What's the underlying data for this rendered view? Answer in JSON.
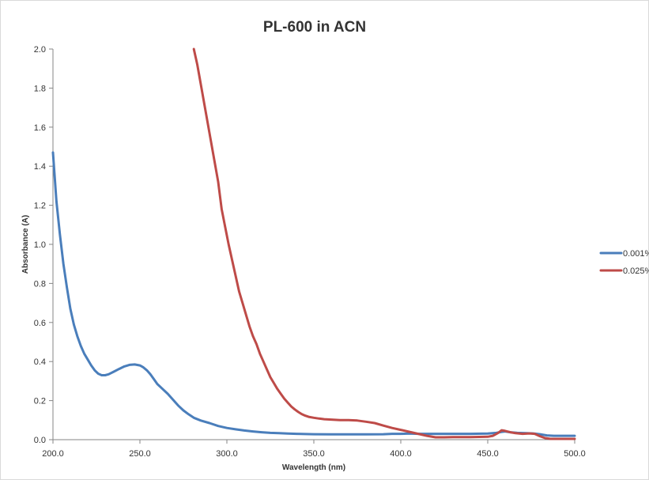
{
  "chart_data": {
    "type": "line",
    "title": "PL-600 in ACN",
    "xlabel": "Wavelength (nm)",
    "ylabel": "Absorbance (A)",
    "xlim": [
      200,
      500
    ],
    "ylim": [
      0,
      2
    ],
    "x_ticks": [
      "200.0",
      "250.0",
      "300.0",
      "350.0",
      "400.0",
      "450.0",
      "500.0"
    ],
    "y_ticks": [
      "0.0",
      "0.2",
      "0.4",
      "0.6",
      "0.8",
      "1.0",
      "1.2",
      "1.4",
      "1.6",
      "1.8",
      "2.0"
    ],
    "grid": false,
    "legend_position": "right",
    "series": [
      {
        "name": "0.001%",
        "color": "#4a7ebb",
        "points": [
          [
            200,
            1.47
          ],
          [
            202,
            1.22
          ],
          [
            204,
            1.05
          ],
          [
            206,
            0.9
          ],
          [
            208,
            0.78
          ],
          [
            210,
            0.67
          ],
          [
            212,
            0.59
          ],
          [
            214,
            0.53
          ],
          [
            216,
            0.48
          ],
          [
            218,
            0.44
          ],
          [
            220,
            0.41
          ],
          [
            222,
            0.38
          ],
          [
            224,
            0.355
          ],
          [
            226,
            0.338
          ],
          [
            228,
            0.33
          ],
          [
            230,
            0.33
          ],
          [
            232,
            0.335
          ],
          [
            235,
            0.348
          ],
          [
            238,
            0.362
          ],
          [
            241,
            0.375
          ],
          [
            244,
            0.383
          ],
          [
            247,
            0.385
          ],
          [
            250,
            0.38
          ],
          [
            252,
            0.37
          ],
          [
            254,
            0.355
          ],
          [
            256,
            0.335
          ],
          [
            258,
            0.31
          ],
          [
            260,
            0.285
          ],
          [
            263,
            0.26
          ],
          [
            266,
            0.235
          ],
          [
            269,
            0.205
          ],
          [
            272,
            0.175
          ],
          [
            275,
            0.15
          ],
          [
            278,
            0.13
          ],
          [
            281,
            0.112
          ],
          [
            285,
            0.098
          ],
          [
            290,
            0.085
          ],
          [
            295,
            0.07
          ],
          [
            300,
            0.06
          ],
          [
            305,
            0.053
          ],
          [
            310,
            0.047
          ],
          [
            315,
            0.042
          ],
          [
            320,
            0.038
          ],
          [
            325,
            0.035
          ],
          [
            330,
            0.033
          ],
          [
            335,
            0.031
          ],
          [
            340,
            0.03
          ],
          [
            350,
            0.028
          ],
          [
            360,
            0.027
          ],
          [
            370,
            0.027
          ],
          [
            380,
            0.027
          ],
          [
            390,
            0.028
          ],
          [
            395,
            0.03
          ],
          [
            400,
            0.03
          ],
          [
            405,
            0.031
          ],
          [
            410,
            0.03
          ],
          [
            420,
            0.03
          ],
          [
            430,
            0.03
          ],
          [
            440,
            0.03
          ],
          [
            450,
            0.031
          ],
          [
            455,
            0.035
          ],
          [
            458,
            0.04
          ],
          [
            460,
            0.042
          ],
          [
            463,
            0.038
          ],
          [
            467,
            0.035
          ],
          [
            472,
            0.033
          ],
          [
            476,
            0.032
          ],
          [
            480,
            0.028
          ],
          [
            484,
            0.022
          ],
          [
            488,
            0.02
          ],
          [
            495,
            0.02
          ],
          [
            500,
            0.02
          ]
        ]
      },
      {
        "name": "0.025%",
        "color": "#be4b48",
        "points": [
          [
            281,
            2.0
          ],
          [
            283,
            1.92
          ],
          [
            285,
            1.82
          ],
          [
            287,
            1.72
          ],
          [
            289,
            1.62
          ],
          [
            291,
            1.52
          ],
          [
            293,
            1.42
          ],
          [
            295,
            1.32
          ],
          [
            296,
            1.25
          ],
          [
            297,
            1.18
          ],
          [
            299,
            1.09
          ],
          [
            301,
            1.0
          ],
          [
            303,
            0.92
          ],
          [
            305,
            0.84
          ],
          [
            307,
            0.76
          ],
          [
            309,
            0.7
          ],
          [
            311,
            0.64
          ],
          [
            313,
            0.58
          ],
          [
            315,
            0.53
          ],
          [
            317,
            0.49
          ],
          [
            319,
            0.44
          ],
          [
            321,
            0.4
          ],
          [
            323,
            0.36
          ],
          [
            325,
            0.32
          ],
          [
            327,
            0.29
          ],
          [
            329,
            0.26
          ],
          [
            331,
            0.235
          ],
          [
            333,
            0.21
          ],
          [
            335,
            0.19
          ],
          [
            337,
            0.17
          ],
          [
            339,
            0.155
          ],
          [
            341,
            0.142
          ],
          [
            343,
            0.131
          ],
          [
            345,
            0.123
          ],
          [
            347,
            0.117
          ],
          [
            350,
            0.112
          ],
          [
            353,
            0.108
          ],
          [
            356,
            0.105
          ],
          [
            360,
            0.103
          ],
          [
            365,
            0.1
          ],
          [
            370,
            0.1
          ],
          [
            375,
            0.098
          ],
          [
            380,
            0.092
          ],
          [
            385,
            0.085
          ],
          [
            390,
            0.072
          ],
          [
            395,
            0.06
          ],
          [
            400,
            0.05
          ],
          [
            405,
            0.04
          ],
          [
            410,
            0.03
          ],
          [
            415,
            0.02
          ],
          [
            420,
            0.012
          ],
          [
            425,
            0.012
          ],
          [
            430,
            0.013
          ],
          [
            440,
            0.013
          ],
          [
            450,
            0.015
          ],
          [
            453,
            0.02
          ],
          [
            456,
            0.035
          ],
          [
            458,
            0.048
          ],
          [
            460,
            0.045
          ],
          [
            463,
            0.038
          ],
          [
            466,
            0.033
          ],
          [
            470,
            0.03
          ],
          [
            474,
            0.032
          ],
          [
            477,
            0.03
          ],
          [
            480,
            0.018
          ],
          [
            483,
            0.008
          ],
          [
            486,
            0.004
          ],
          [
            490,
            0.004
          ],
          [
            500,
            0.004
          ]
        ]
      }
    ]
  }
}
